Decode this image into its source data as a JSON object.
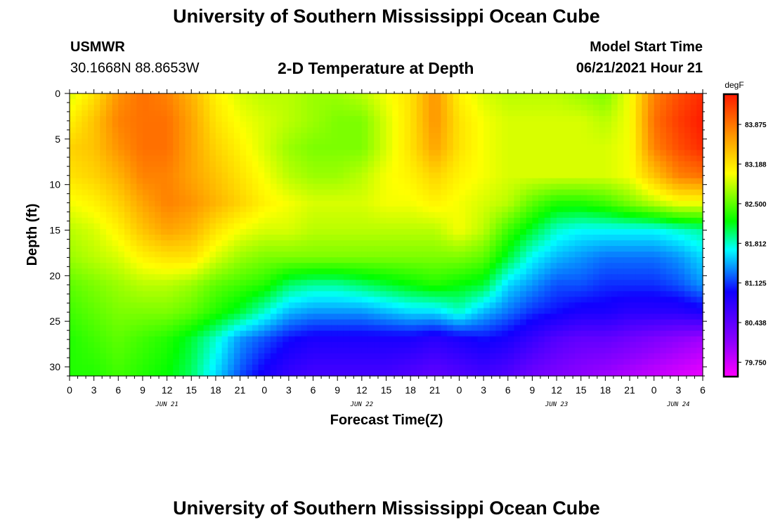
{
  "header": {
    "title": "University of Southern Mississippi Ocean Cube",
    "station": "USMWR",
    "location": "30.1668N  88.8653W",
    "subtitle": "2-D Temperature at Depth",
    "model_start_label": "Model Start Time",
    "model_start_value": "06/21/2021 Hour 21"
  },
  "footer": {
    "title": "University of Southern Mississippi Ocean Cube"
  },
  "chart_data": {
    "type": "heatmap",
    "title": "2-D Temperature at Depth",
    "xlabel": "Forecast Time(Z)",
    "ylabel": "Depth (ft)",
    "xlim": [
      0,
      78
    ],
    "ylim": [
      0,
      31
    ],
    "y_inverted": true,
    "x_tick_labels": [
      "0",
      "3",
      "6",
      "9",
      "12",
      "15",
      "18",
      "21",
      "0",
      "3",
      "6",
      "9",
      "12",
      "15",
      "18",
      "21",
      "0",
      "3",
      "6",
      "9",
      "12",
      "15",
      "18",
      "21",
      "0",
      "3",
      "6"
    ],
    "y_tick_labels": [
      "0",
      "5",
      "10",
      "15",
      "20",
      "25",
      "30"
    ],
    "y_ticks": [
      0,
      5,
      10,
      15,
      20,
      25,
      30
    ],
    "date_labels": [
      {
        "label": "JUN 21",
        "hour": 12
      },
      {
        "label": "JUN 22",
        "hour": 36
      },
      {
        "label": "JUN 23",
        "hour": 60
      },
      {
        "label": "JUN 24",
        "hour": 75
      }
    ],
    "colorbar": {
      "unit": "degF",
      "min": 79.5,
      "max": 84.4,
      "tick_labels": [
        "83.875",
        "83.188",
        "82.500",
        "81.812",
        "81.125",
        "80.438",
        "79.750"
      ],
      "ticks": [
        83.875,
        83.188,
        82.5,
        81.812,
        81.125,
        80.438,
        79.75
      ]
    },
    "x_hours": [
      0,
      3,
      6,
      9,
      12,
      15,
      18,
      21,
      24,
      27,
      30,
      33,
      36,
      39,
      42,
      45,
      48,
      51,
      54,
      57,
      60,
      63,
      66,
      69,
      72,
      75,
      78
    ],
    "depths_ft": [
      0,
      3,
      6,
      9,
      12,
      15,
      18,
      21,
      24,
      27,
      31
    ],
    "temperature_degF": [
      [
        82.9,
        83.2,
        83.7,
        83.9,
        83.8,
        83.5,
        83.1,
        82.9,
        82.8,
        82.8,
        82.7,
        82.7,
        82.8,
        83.0,
        83.2,
        83.7,
        83.1,
        82.9,
        82.8,
        82.8,
        82.8,
        82.7,
        82.6,
        83.0,
        83.8,
        84.1,
        84.3
      ],
      [
        83.1,
        83.4,
        83.8,
        83.9,
        83.9,
        83.6,
        83.2,
        83.0,
        82.9,
        82.8,
        82.7,
        82.6,
        82.6,
        82.9,
        83.2,
        83.7,
        83.2,
        83.0,
        82.9,
        82.9,
        82.9,
        82.9,
        82.8,
        83.0,
        83.9,
        84.2,
        84.4
      ],
      [
        83.3,
        83.4,
        83.7,
        83.9,
        83.9,
        83.6,
        83.3,
        83.1,
        82.9,
        82.7,
        82.6,
        82.6,
        82.6,
        82.9,
        83.2,
        83.6,
        83.2,
        83.0,
        82.9,
        82.9,
        82.9,
        82.9,
        82.9,
        83.0,
        83.8,
        84.1,
        84.3
      ],
      [
        83.2,
        83.3,
        83.5,
        83.8,
        83.8,
        83.6,
        83.4,
        83.2,
        83.0,
        82.8,
        82.7,
        82.7,
        82.8,
        83.0,
        83.1,
        83.3,
        83.1,
        83.0,
        82.9,
        82.9,
        82.9,
        82.9,
        82.9,
        83.0,
        83.4,
        83.8,
        83.9
      ],
      [
        83.0,
        83.1,
        83.3,
        83.6,
        83.8,
        83.7,
        83.5,
        83.3,
        83.1,
        83.0,
        82.9,
        82.9,
        82.9,
        83.0,
        83.0,
        83.1,
        83.0,
        82.9,
        82.8,
        82.5,
        82.3,
        82.3,
        82.4,
        82.6,
        82.8,
        83.0,
        83.0
      ],
      [
        82.8,
        82.9,
        83.1,
        83.4,
        83.6,
        83.5,
        83.2,
        83.0,
        82.9,
        82.9,
        82.8,
        82.8,
        82.8,
        82.8,
        82.8,
        82.8,
        83.0,
        82.8,
        82.4,
        82.1,
        81.8,
        81.7,
        81.7,
        81.7,
        81.7,
        81.8,
        81.9
      ],
      [
        82.7,
        82.8,
        82.9,
        83.1,
        83.2,
        83.2,
        82.9,
        82.7,
        82.6,
        82.6,
        82.6,
        82.6,
        82.6,
        82.6,
        82.6,
        82.6,
        82.6,
        82.5,
        82.1,
        81.7,
        81.5,
        81.4,
        81.3,
        81.3,
        81.3,
        81.4,
        81.6
      ],
      [
        82.5,
        82.6,
        82.7,
        82.8,
        82.8,
        82.7,
        82.5,
        82.4,
        82.3,
        82.0,
        81.9,
        81.9,
        82.0,
        82.1,
        82.2,
        82.3,
        82.2,
        82.1,
        81.6,
        81.4,
        81.2,
        81.2,
        81.1,
        81.1,
        81.1,
        81.2,
        81.4
      ],
      [
        82.4,
        82.5,
        82.6,
        82.6,
        82.6,
        82.5,
        82.3,
        82.1,
        81.8,
        81.5,
        81.4,
        81.4,
        81.4,
        81.5,
        81.6,
        81.6,
        81.8,
        81.5,
        81.3,
        81.1,
        81.0,
        80.9,
        80.9,
        80.8,
        80.8,
        80.8,
        80.9
      ],
      [
        82.3,
        82.4,
        82.5,
        82.4,
        82.3,
        82.1,
        81.8,
        81.4,
        81.2,
        81.0,
        80.9,
        80.9,
        80.9,
        80.9,
        80.9,
        80.8,
        80.9,
        81.0,
        80.9,
        80.7,
        80.5,
        80.4,
        80.4,
        80.3,
        80.2,
        80.1,
        80.0
      ],
      [
        82.3,
        82.3,
        82.4,
        82.3,
        82.2,
        82.0,
        81.6,
        81.2,
        80.9,
        80.7,
        80.6,
        80.6,
        80.6,
        80.6,
        80.5,
        80.4,
        80.5,
        80.6,
        80.5,
        80.3,
        80.2,
        80.1,
        80.0,
        79.9,
        79.8,
        79.7,
        79.6
      ]
    ]
  }
}
